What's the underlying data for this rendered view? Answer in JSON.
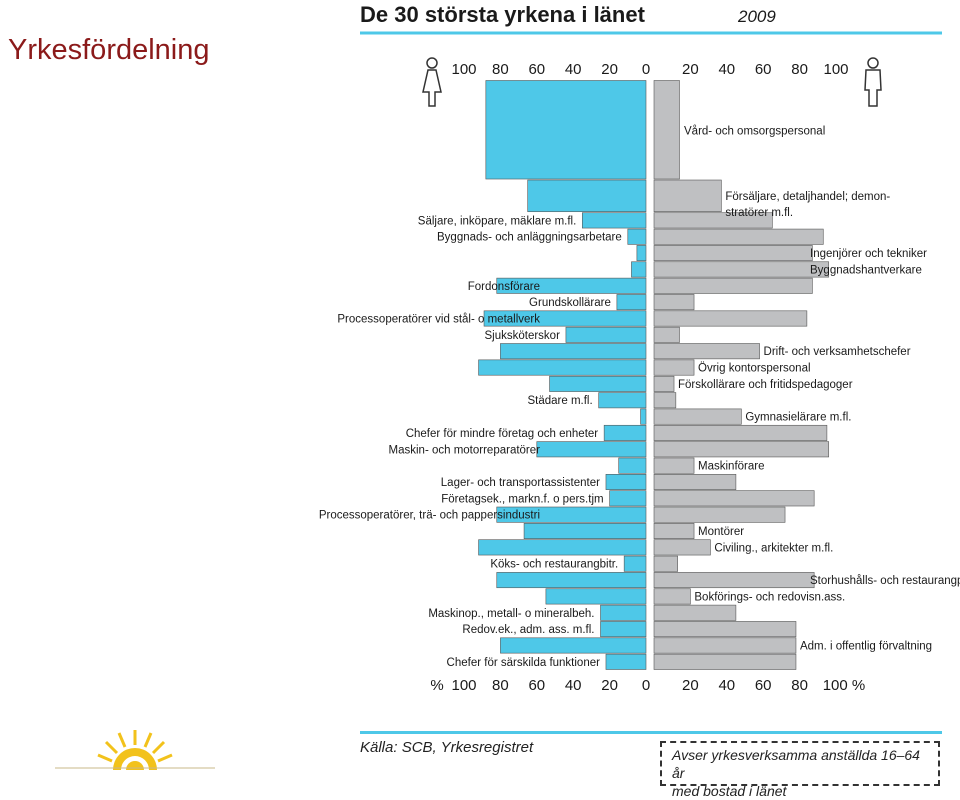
{
  "slide": {
    "title": "Yrkesfördelning"
  },
  "chart_data": {
    "type": "bar",
    "orientation": "horizontal-butterfly",
    "title": "De 30 största yrkena i länet",
    "title_year": "2009",
    "unit_label": "%",
    "xlim": [
      0,
      100
    ],
    "ticks": [
      100,
      80,
      60,
      40,
      20,
      0
    ],
    "ticks_right": [
      20,
      40,
      60,
      80,
      100
    ],
    "axis_labels_bottom_left": [
      "%",
      "100",
      "80",
      "60",
      "40",
      "20",
      "0"
    ],
    "axis_labels_bottom_right": [
      "20",
      "40",
      "60",
      "80",
      "100 %"
    ],
    "colors": {
      "women": "#4ec8e8",
      "men": "#bfc0c2",
      "title_rule": "#4ec8e8"
    },
    "series": [
      {
        "name": "Kvinnor",
        "icon": "female-figure-icon",
        "values": [
          88,
          65,
          35,
          10,
          5,
          8,
          82,
          16,
          89,
          44,
          80,
          92,
          53,
          26,
          3,
          23,
          60,
          15,
          22,
          20,
          82,
          67,
          92,
          12,
          82,
          55,
          25,
          25,
          80,
          22
        ]
      },
      {
        "name": "Män",
        "icon": "male-figure-icon",
        "values": [
          14,
          37,
          65,
          93,
          87,
          96,
          87,
          22,
          84,
          14,
          58,
          22,
          11,
          12,
          48,
          95,
          96,
          22,
          45,
          88,
          72,
          22,
          31,
          13,
          88,
          20,
          45,
          78,
          78,
          78
        ]
      }
    ],
    "annotations": [
      {
        "text": "Vård- och omsorgspersonal",
        "side": "right",
        "row": 0
      },
      {
        "text": "Försäljare, detaljhandel; demon-",
        "side": "right",
        "row": 1
      },
      {
        "text": "stratörer m.fl.",
        "side": "right",
        "row": 1
      },
      {
        "text": "Säljare, inköpare, mäklare m.fl.",
        "side": "left",
        "row": 2
      },
      {
        "text": "Byggnads- och anläggningsarbetare",
        "side": "left",
        "row": 3
      },
      {
        "text": "Ingenjörer och tekniker",
        "side": "right",
        "row": 4
      },
      {
        "text": "Byggnadshantverkare",
        "side": "right",
        "row": 5
      },
      {
        "text": "Fordonsförare",
        "side": "left",
        "row": 6
      },
      {
        "text": "Grundskollärare",
        "side": "left",
        "row": 7
      },
      {
        "text": "Processoperatörer vid stål- o metallverk",
        "side": "left",
        "row": 8
      },
      {
        "text": "Sjuksköterskor",
        "side": "left",
        "row": 9
      },
      {
        "text": "Drift- och verksamhetschefer",
        "side": "right",
        "row": 10
      },
      {
        "text": "Övrig kontorspersonal",
        "side": "right",
        "row": 11
      },
      {
        "text": "Förskollärare och fritidspedagoger",
        "side": "right",
        "row": 12
      },
      {
        "text": "Städare m.fl.",
        "side": "left",
        "row": 13
      },
      {
        "text": "Gymnasielärare m.fl.",
        "side": "right",
        "row": 14
      },
      {
        "text": "Chefer för mindre företag och enheter",
        "side": "left",
        "row": 15
      },
      {
        "text": "Maskin- och motorreparatörer",
        "side": "left",
        "row": 16
      },
      {
        "text": "Maskinförare",
        "side": "right",
        "row": 17
      },
      {
        "text": "Lager- och transportassistenter",
        "side": "left",
        "row": 18
      },
      {
        "text": "Företagsek., markn.f. o pers.tjm",
        "side": "left",
        "row": 19
      },
      {
        "text": "Processoperatörer, trä- och pappersindustri",
        "side": "left",
        "row": 20
      },
      {
        "text": "Montörer",
        "side": "right",
        "row": 21
      },
      {
        "text": "Civiling., arkitekter m.fl.",
        "side": "right",
        "row": 22
      },
      {
        "text": "Köks- och restaurangbitr.",
        "side": "left",
        "row": 23
      },
      {
        "text": "Storhushålls- och restaurangpersonal",
        "side": "right",
        "row": 24
      },
      {
        "text": "Bokförings- och redovisn.ass.",
        "side": "right",
        "row": 25
      },
      {
        "text": "Maskinop., metall- o mineralbeh.",
        "side": "left",
        "row": 26
      },
      {
        "text": "Redov.ek., adm. ass. m.fl.",
        "side": "left",
        "row": 27
      },
      {
        "text": "Adm. i offentlig förvaltning",
        "side": "right",
        "row": 28
      },
      {
        "text": "Chefer för särskilda funktioner",
        "side": "left",
        "row": 29
      }
    ],
    "grid": false
  },
  "footer": {
    "source": "Källa: SCB, Yrkesregistret",
    "note_line1": "Avser yrkesverksamma anställda 16–64 år",
    "note_line2": "med bostad i länet",
    "logo_icon": "sun-logo-icon"
  }
}
